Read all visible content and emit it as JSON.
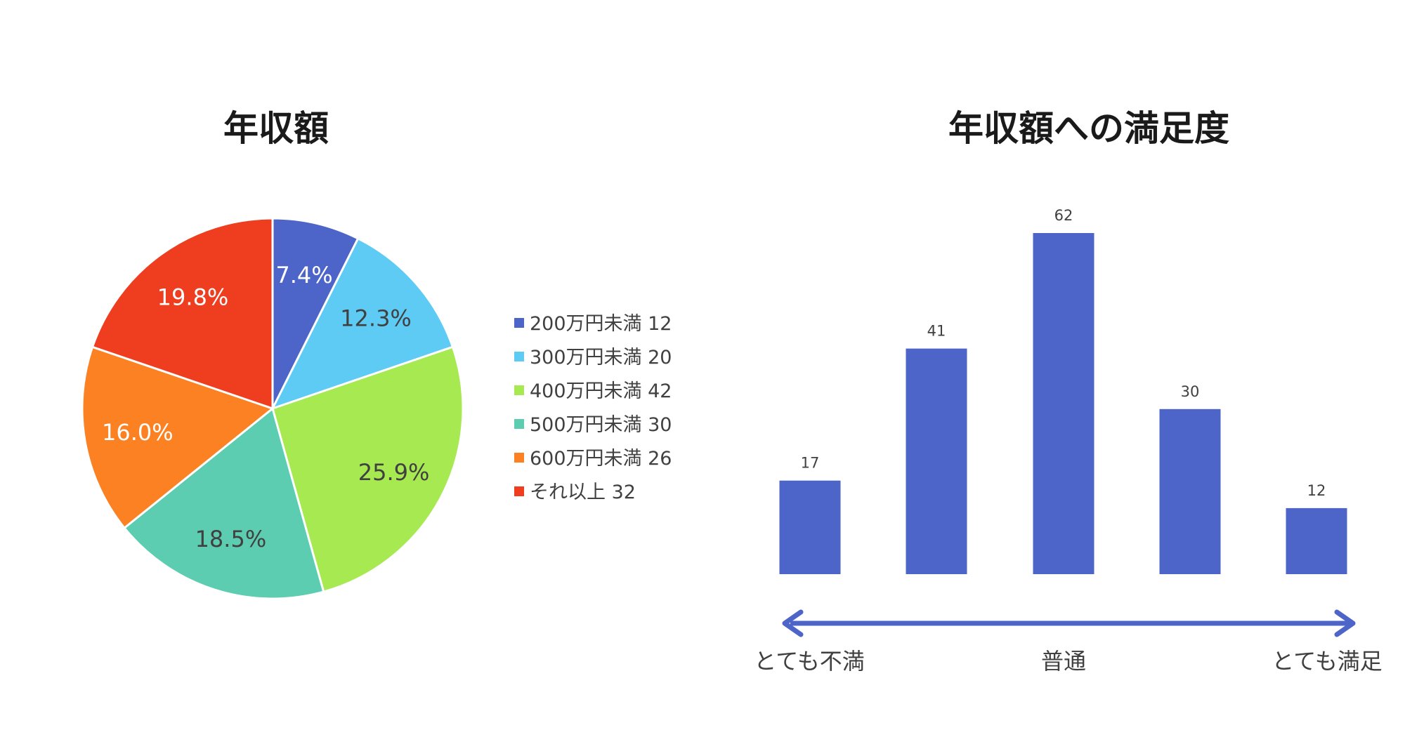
{
  "chart_data": [
    {
      "type": "pie",
      "title": "年収額",
      "slices": [
        {
          "label": "200万円未満",
          "value": 12,
          "percent_label": "7.4%",
          "color": "#4d64c8",
          "text_color": "#ffffff"
        },
        {
          "label": "300万円未満",
          "value": 20,
          "percent_label": "12.3%",
          "color": "#5ecbf5",
          "text_color": "#404040"
        },
        {
          "label": "400万円未満",
          "value": 42,
          "percent_label": "25.9%",
          "color": "#a7e951",
          "text_color": "#404040"
        },
        {
          "label": "500万円未満",
          "value": 30,
          "percent_label": "18.5%",
          "color": "#5ccdb1",
          "text_color": "#404040"
        },
        {
          "label": "600万円未満",
          "value": 26,
          "percent_label": "16.0%",
          "color": "#fb8123",
          "text_color": "#ffffff"
        },
        {
          "label": "それ以上",
          "value": 32,
          "percent_label": "19.8%",
          "color": "#ef3d20",
          "text_color": "#ffffff"
        }
      ],
      "legend_position": "right"
    },
    {
      "type": "bar",
      "title": "年収額への満足度",
      "values": [
        17,
        41,
        62,
        30,
        12
      ],
      "bar_color": "#4d64c8",
      "ylim": [
        0,
        62
      ],
      "axis_labels": {
        "left": "とても不満",
        "middle": "普通",
        "right": "とても満足"
      },
      "arrow_color": "#4d64c8",
      "grid": false
    }
  ]
}
